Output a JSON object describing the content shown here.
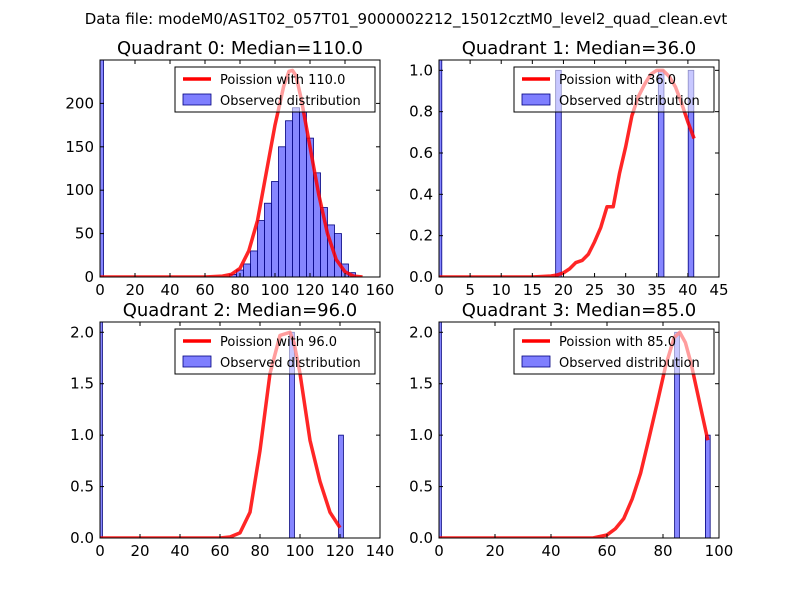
{
  "figure": {
    "suptitle": "Data file: modeM0/AS1T02_057T01_9000002212_15012cztM0_level2_quad_clean.evt"
  },
  "colors": {
    "poisson": "#ff0000",
    "bar_fill": "#7f7fff",
    "bar_edge": "#00007f"
  },
  "chart_data": [
    {
      "type": "bar",
      "title": "Quadrant 0: Median=110.0",
      "xlim": [
        0,
        160
      ],
      "ylim": [
        0,
        250
      ],
      "xticks": [
        0,
        20,
        40,
        60,
        80,
        100,
        120,
        140,
        160
      ],
      "yticks": [
        0,
        50,
        100,
        150,
        200
      ],
      "ytick_labels": [
        "0",
        "50",
        "100",
        "150",
        "200"
      ],
      "bar_width": 4,
      "bars": [
        {
          "x": 0,
          "y": 250
        },
        {
          "x": 76,
          "y": 3
        },
        {
          "x": 80,
          "y": 8
        },
        {
          "x": 84,
          "y": 15
        },
        {
          "x": 88,
          "y": 30
        },
        {
          "x": 92,
          "y": 65
        },
        {
          "x": 96,
          "y": 85
        },
        {
          "x": 100,
          "y": 110
        },
        {
          "x": 104,
          "y": 150
        },
        {
          "x": 108,
          "y": 180
        },
        {
          "x": 112,
          "y": 195
        },
        {
          "x": 116,
          "y": 190
        },
        {
          "x": 120,
          "y": 160
        },
        {
          "x": 124,
          "y": 120
        },
        {
          "x": 128,
          "y": 80
        },
        {
          "x": 132,
          "y": 60
        },
        {
          "x": 136,
          "y": 50
        },
        {
          "x": 140,
          "y": 15
        },
        {
          "x": 144,
          "y": 5
        }
      ],
      "poisson": {
        "x": [
          0,
          60,
          70,
          75,
          80,
          85,
          90,
          95,
          100,
          105,
          108,
          110,
          112,
          115,
          120,
          125,
          130,
          135,
          140,
          145,
          150
        ],
        "y": [
          0,
          0,
          1,
          3,
          10,
          30,
          65,
          120,
          175,
          220,
          237,
          238,
          232,
          205,
          150,
          95,
          50,
          20,
          6,
          1,
          0
        ]
      },
      "legend": {
        "line_label": "Poission with 110.0",
        "bar_label": "Observed distribution",
        "loc": "upper right"
      }
    },
    {
      "type": "bar",
      "title": "Quadrant 1: Median=36.0",
      "xlim": [
        0,
        45
      ],
      "ylim": [
        0,
        1.05
      ],
      "xticks": [
        0,
        5,
        10,
        15,
        20,
        25,
        30,
        35,
        40,
        45
      ],
      "yticks": [
        0,
        0.2,
        0.4,
        0.6,
        0.8,
        1.0
      ],
      "ytick_labels": [
        "0.0",
        "0.2",
        "0.4",
        "0.6",
        "0.8",
        "1.0"
      ],
      "bar_width": 0.9,
      "bars": [
        {
          "x": 0,
          "y": 1.05
        },
        {
          "x": 19.2,
          "y": 1.0
        },
        {
          "x": 35.7,
          "y": 1.0
        },
        {
          "x": 40.5,
          "y": 1.0
        }
      ],
      "poisson": {
        "x": [
          0,
          15,
          18,
          19,
          20,
          21,
          22,
          23,
          24,
          25,
          26,
          27,
          28,
          29,
          30,
          31,
          32,
          33,
          34,
          35,
          36,
          37,
          38,
          39,
          40,
          41
        ],
        "y": [
          0,
          0,
          0.005,
          0.01,
          0.02,
          0.04,
          0.07,
          0.08,
          0.11,
          0.17,
          0.24,
          0.34,
          0.34,
          0.5,
          0.63,
          0.78,
          0.87,
          0.93,
          0.98,
          1.0,
          1.0,
          0.97,
          0.92,
          0.84,
          0.75,
          0.67
        ]
      },
      "legend": {
        "line_label": "Poission with 36.0",
        "bar_label": "Observed distribution",
        "loc": "upper right"
      }
    },
    {
      "type": "bar",
      "title": "Quadrant 2: Median=96.0",
      "xlim": [
        0,
        140
      ],
      "ylim": [
        0,
        2.1
      ],
      "xticks": [
        0,
        20,
        40,
        60,
        80,
        100,
        120,
        140
      ],
      "yticks": [
        0,
        0.5,
        1.0,
        1.5,
        2.0
      ],
      "ytick_labels": [
        "0.0",
        "0.5",
        "1.0",
        "1.5",
        "2.0"
      ],
      "bar_width": 2.4,
      "bars": [
        {
          "x": 0,
          "y": 2.1
        },
        {
          "x": 96,
          "y": 2.0
        },
        {
          "x": 120.5,
          "y": 1.0
        }
      ],
      "poisson": {
        "x": [
          0,
          60,
          65,
          70,
          75,
          80,
          85,
          90,
          95,
          97,
          100,
          105,
          110,
          115,
          120
        ],
        "y": [
          0,
          0,
          0.01,
          0.05,
          0.25,
          0.85,
          1.6,
          1.97,
          2.0,
          1.9,
          1.6,
          0.95,
          0.55,
          0.25,
          0.1
        ]
      },
      "legend": {
        "line_label": "Poission with 96.0",
        "bar_label": "Observed distribution",
        "loc": "upper right"
      }
    },
    {
      "type": "bar",
      "title": "Quadrant 3: Median=85.0",
      "xlim": [
        0,
        100
      ],
      "ylim": [
        0,
        2.1
      ],
      "xticks": [
        0,
        20,
        40,
        60,
        80,
        100
      ],
      "yticks": [
        0,
        0.5,
        1.0,
        1.5,
        2.0
      ],
      "ytick_labels": [
        "0.0",
        "0.5",
        "1.0",
        "1.5",
        "2.0"
      ],
      "bar_width": 1.7,
      "bars": [
        {
          "x": 0,
          "y": 2.1
        },
        {
          "x": 85,
          "y": 2.0
        },
        {
          "x": 96,
          "y": 1.0
        }
      ],
      "poisson": {
        "x": [
          0,
          55,
          60,
          63,
          66,
          69,
          72,
          75,
          78,
          81,
          84,
          86,
          88,
          90,
          92,
          94,
          96
        ],
        "y": [
          0,
          0,
          0.03,
          0.09,
          0.19,
          0.38,
          0.63,
          0.97,
          1.32,
          1.68,
          1.95,
          2.0,
          1.9,
          1.7,
          1.45,
          1.2,
          0.95
        ]
      },
      "legend": {
        "line_label": "Poission with 85.0",
        "bar_label": "Observed distribution",
        "loc": "upper right"
      }
    }
  ]
}
